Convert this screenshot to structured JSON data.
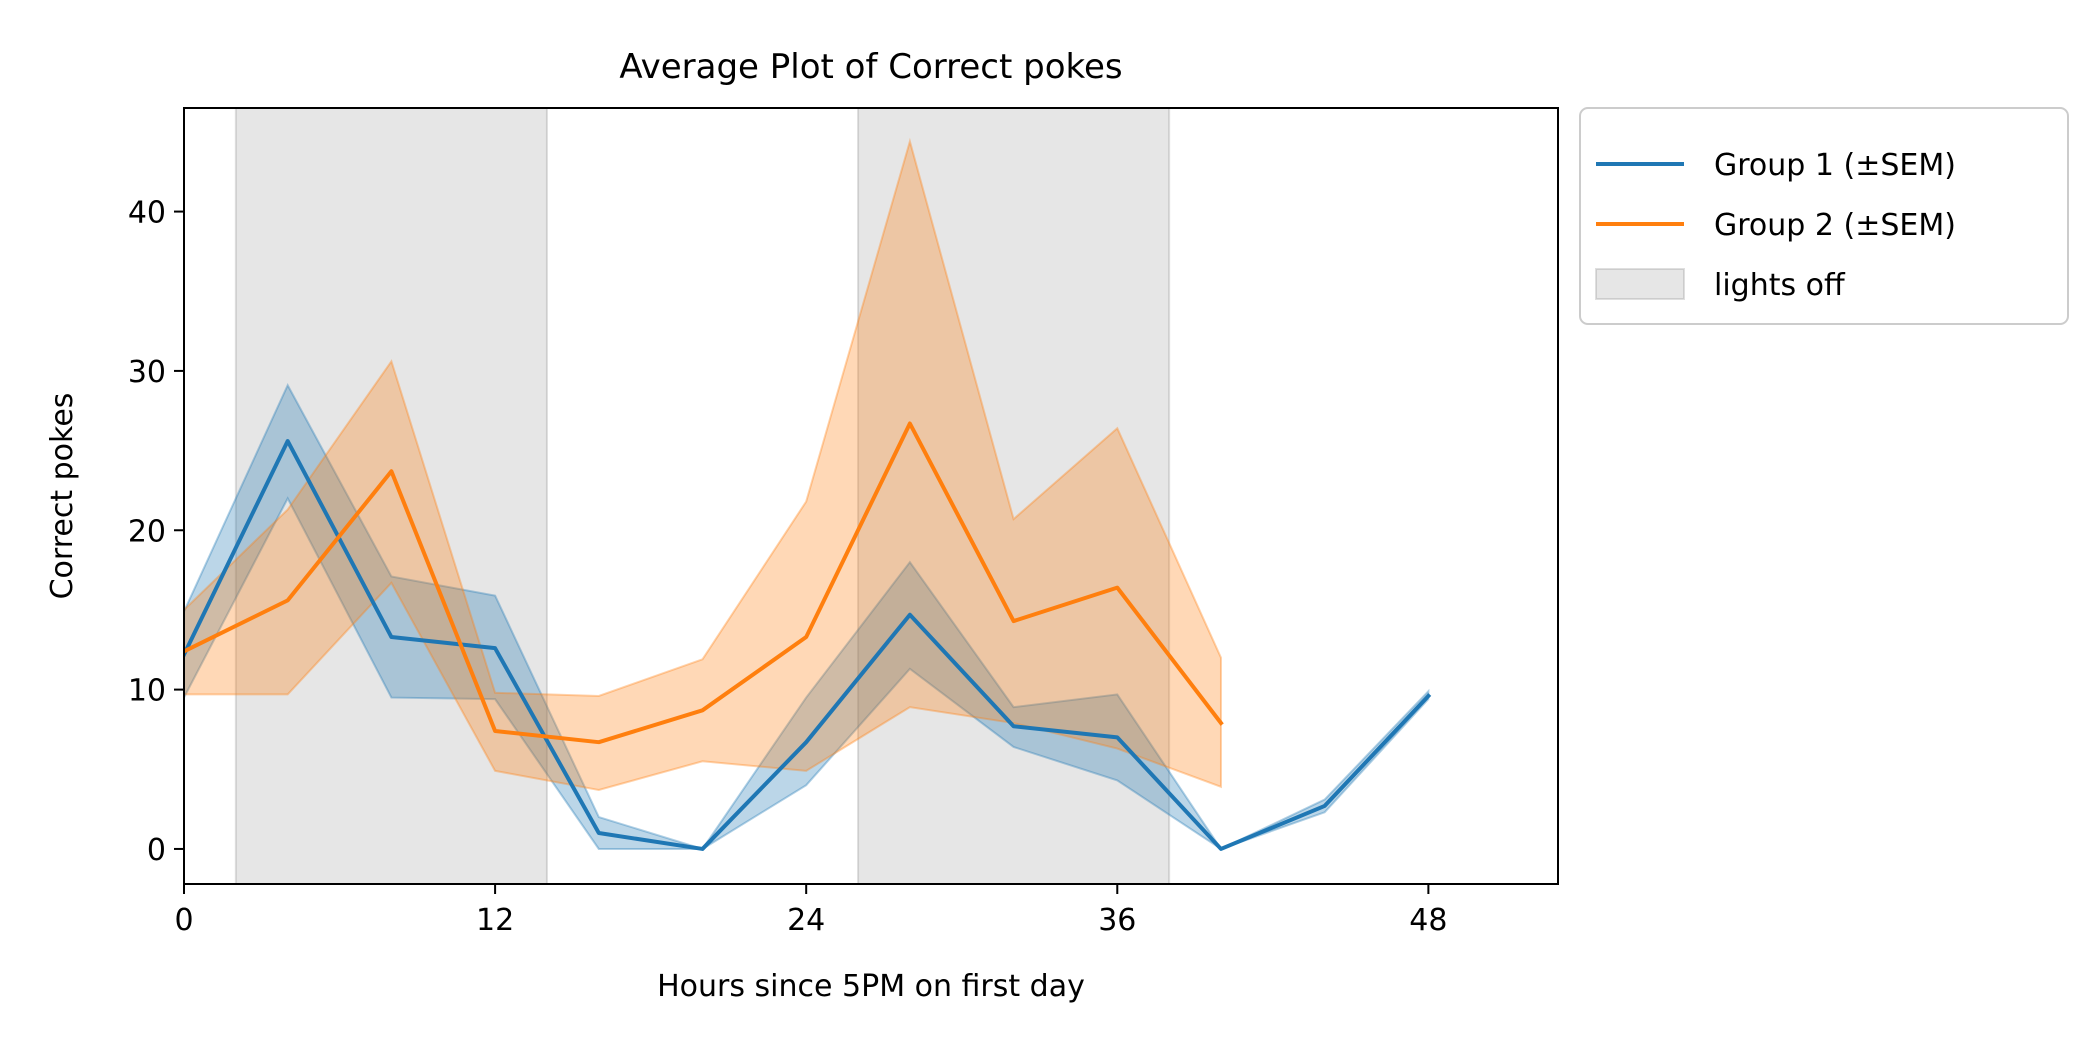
{
  "chart_data": {
    "type": "line",
    "title": "Average Plot of Correct pokes",
    "xlabel": "Hours since 5PM on first day",
    "ylabel": "Correct pokes",
    "xlim": [
      0,
      53
    ],
    "ylim": [
      -2.2,
      46.5
    ],
    "xticks": [
      0,
      12,
      24,
      36,
      48
    ],
    "yticks": [
      0,
      10,
      20,
      30,
      40
    ],
    "grid": false,
    "legend_position": "outside-top-right",
    "shaded_regions": [
      {
        "label": "lights off",
        "x_start": 2,
        "x_end": 14
      },
      {
        "label": "lights off",
        "x_start": 26,
        "x_end": 38
      }
    ],
    "series": [
      {
        "name": "Group 1 (±SEM)",
        "color": "#1f77b4",
        "x": [
          0,
          4,
          8,
          12,
          16,
          20,
          24,
          28,
          32,
          36,
          40,
          44,
          48
        ],
        "values": [
          12.2,
          25.6,
          13.3,
          12.6,
          1.0,
          0.0,
          6.7,
          14.7,
          7.7,
          7.0,
          0.0,
          2.7,
          9.6
        ],
        "lower": [
          9.5,
          22.0,
          9.5,
          9.4,
          0.0,
          0.0,
          4.0,
          11.3,
          6.4,
          4.3,
          0.0,
          2.3,
          9.4
        ],
        "upper": [
          14.9,
          29.1,
          17.1,
          15.9,
          2.0,
          0.0,
          9.5,
          18.0,
          8.9,
          9.7,
          0.0,
          3.1,
          9.9
        ]
      },
      {
        "name": "Group 2 (±SEM)",
        "color": "#ff7f0e",
        "x": [
          0,
          4,
          8,
          12,
          16,
          20,
          24,
          28,
          32,
          36,
          40
        ],
        "values": [
          12.4,
          15.6,
          23.7,
          7.4,
          6.7,
          8.7,
          13.3,
          26.7,
          14.3,
          16.4,
          7.9
        ],
        "lower": [
          9.7,
          9.7,
          16.7,
          4.9,
          3.7,
          5.5,
          4.9,
          8.9,
          7.9,
          6.3,
          3.9
        ],
        "upper": [
          15.0,
          21.3,
          30.6,
          9.8,
          9.6,
          11.9,
          21.8,
          44.4,
          20.7,
          26.4,
          12.0
        ]
      }
    ],
    "legend": [
      {
        "label": "Group 1 (±SEM)",
        "kind": "line",
        "color": "#1f77b4"
      },
      {
        "label": "Group 2 (±SEM)",
        "kind": "line",
        "color": "#ff7f0e"
      },
      {
        "label": "lights off",
        "kind": "patch",
        "color": "#e5e5e5"
      }
    ]
  }
}
